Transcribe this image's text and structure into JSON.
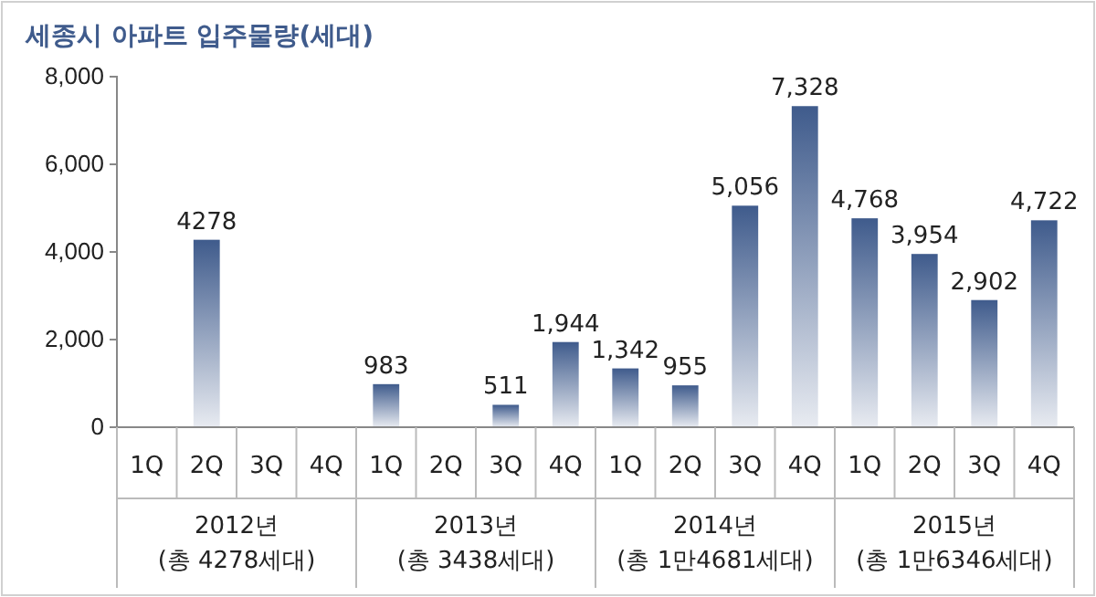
{
  "chart_data": {
    "type": "bar",
    "title": "세종시 아파트 입주물량(세대)",
    "categories": [
      "1Q",
      "2Q",
      "3Q",
      "4Q",
      "1Q",
      "2Q",
      "3Q",
      "4Q",
      "1Q",
      "2Q",
      "3Q",
      "4Q",
      "1Q",
      "2Q",
      "3Q",
      "4Q"
    ],
    "values": [
      null,
      4278,
      null,
      null,
      983,
      null,
      511,
      1944,
      1342,
      955,
      5056,
      7328,
      4768,
      3954,
      2902,
      4722
    ],
    "value_labels": [
      null,
      "4278",
      null,
      null,
      "983",
      null,
      "511",
      "1,944",
      "1,342",
      "955",
      "5,056",
      "7,328",
      "4,768",
      "3,954",
      "2,902",
      "4,722"
    ],
    "color": "#3f5b8c",
    "ylim": [
      0,
      8000
    ],
    "yticks": [
      {
        "value": 0,
        "label": "0"
      },
      {
        "value": 2000,
        "label": "2,000"
      },
      {
        "value": 4000,
        "label": "4,000"
      },
      {
        "value": 6000,
        "label": "6,000"
      },
      {
        "value": 8000,
        "label": "8,000"
      }
    ],
    "annotations": [
      "2012년\n(총 4278세대)",
      "2013년\n(총 3438세대)",
      "2014년\n(총 1만4681세대)",
      "2015년\n(총 1만6346세대)"
    ]
  }
}
